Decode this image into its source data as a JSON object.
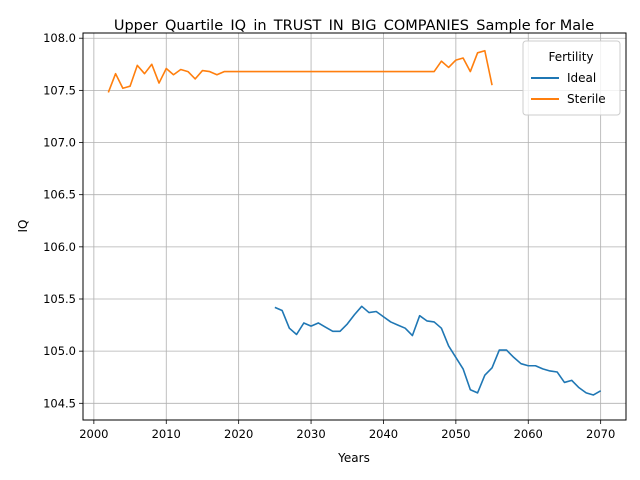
{
  "chart_data": {
    "type": "line",
    "title": "Upper_Quartile_IQ_in_TRUST_IN_BIG_COMPANIES_Sample for Male",
    "xlabel": "Years",
    "ylabel": "IQ",
    "xlim": [
      1998.5,
      2073.5
    ],
    "ylim": [
      104.34,
      108.05
    ],
    "xticks": [
      2000,
      2010,
      2020,
      2030,
      2040,
      2050,
      2060,
      2070
    ],
    "yticks": [
      104.5,
      105.0,
      105.5,
      106.0,
      106.5,
      107.0,
      107.5,
      108.0
    ],
    "xtick_labels": [
      "2000",
      "2010",
      "2020",
      "2030",
      "2040",
      "2050",
      "2060",
      "2070"
    ],
    "ytick_labels": [
      "104.5",
      "105.0",
      "105.5",
      "106.0",
      "106.5",
      "107.0",
      "107.5",
      "108.0"
    ],
    "grid": true,
    "legend": {
      "title": "Fertility",
      "placement": "top-right"
    },
    "series": [
      {
        "name": "Ideal",
        "color": "#1f77b4",
        "x": [
          2025,
          2026,
          2027,
          2028,
          2029,
          2030,
          2031,
          2032,
          2033,
          2034,
          2035,
          2036,
          2037,
          2038,
          2039,
          2040,
          2041,
          2042,
          2043,
          2044,
          2045,
          2046,
          2047,
          2048,
          2049,
          2050,
          2051,
          2052,
          2053,
          2054,
          2055,
          2056,
          2057,
          2058,
          2059,
          2060,
          2061,
          2062,
          2063,
          2064,
          2065,
          2066,
          2067,
          2068,
          2069,
          2070
        ],
        "y": [
          105.42,
          105.39,
          105.22,
          105.16,
          105.27,
          105.24,
          105.27,
          105.23,
          105.19,
          105.19,
          105.26,
          105.35,
          105.43,
          105.37,
          105.38,
          105.33,
          105.28,
          105.25,
          105.22,
          105.15,
          105.34,
          105.29,
          105.28,
          105.22,
          105.05,
          104.94,
          104.83,
          104.63,
          104.6,
          104.77,
          104.84,
          105.01,
          105.01,
          104.94,
          104.88,
          104.86,
          104.86,
          104.83,
          104.81,
          104.8,
          104.7,
          104.72,
          104.65,
          104.6,
          104.58,
          104.62
        ]
      },
      {
        "name": "Sterile",
        "color": "#ff7f0e",
        "x": [
          2002,
          2003,
          2004,
          2005,
          2006,
          2007,
          2008,
          2009,
          2010,
          2011,
          2012,
          2013,
          2014,
          2015,
          2016,
          2017,
          2018,
          2019,
          2020,
          2021,
          2022,
          2023,
          2024,
          2025,
          2026,
          2027,
          2028,
          2029,
          2030,
          2031,
          2032,
          2033,
          2034,
          2035,
          2036,
          2037,
          2038,
          2039,
          2040,
          2041,
          2042,
          2043,
          2044,
          2045,
          2046,
          2047,
          2048,
          2049,
          2050,
          2051,
          2052,
          2053,
          2054,
          2055
        ],
        "y": [
          107.48,
          107.66,
          107.52,
          107.54,
          107.74,
          107.66,
          107.75,
          107.57,
          107.71,
          107.65,
          107.7,
          107.68,
          107.61,
          107.69,
          107.68,
          107.65,
          107.68,
          107.68,
          107.68,
          107.68,
          107.68,
          107.68,
          107.68,
          107.68,
          107.68,
          107.68,
          107.68,
          107.68,
          107.68,
          107.68,
          107.68,
          107.68,
          107.68,
          107.68,
          107.68,
          107.68,
          107.68,
          107.68,
          107.68,
          107.68,
          107.68,
          107.68,
          107.68,
          107.68,
          107.68,
          107.68,
          107.78,
          107.72,
          107.79,
          107.81,
          107.68,
          107.86,
          107.88,
          107.55
        ]
      }
    ]
  }
}
